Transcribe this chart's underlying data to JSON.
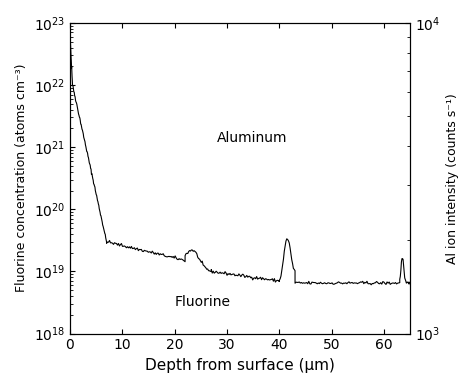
{
  "title": "",
  "xlabel": "Depth from surface (μm)",
  "ylabel_left": "Fluorine concentration (atoms cm⁻³)",
  "ylabel_right": "Al ion intensity (counts s⁻¹)",
  "xlim": [
    0,
    65
  ],
  "ylim_left": [
    1e+18,
    1e+23
  ],
  "ylim_right": [
    1000.0,
    10000.0
  ],
  "label_fluorine": "Fluorine",
  "label_aluminum": "Aluminum",
  "line_color": "#000000",
  "background_color": "#ffffff",
  "figsize": [
    4.74,
    3.88
  ],
  "dpi": 100
}
